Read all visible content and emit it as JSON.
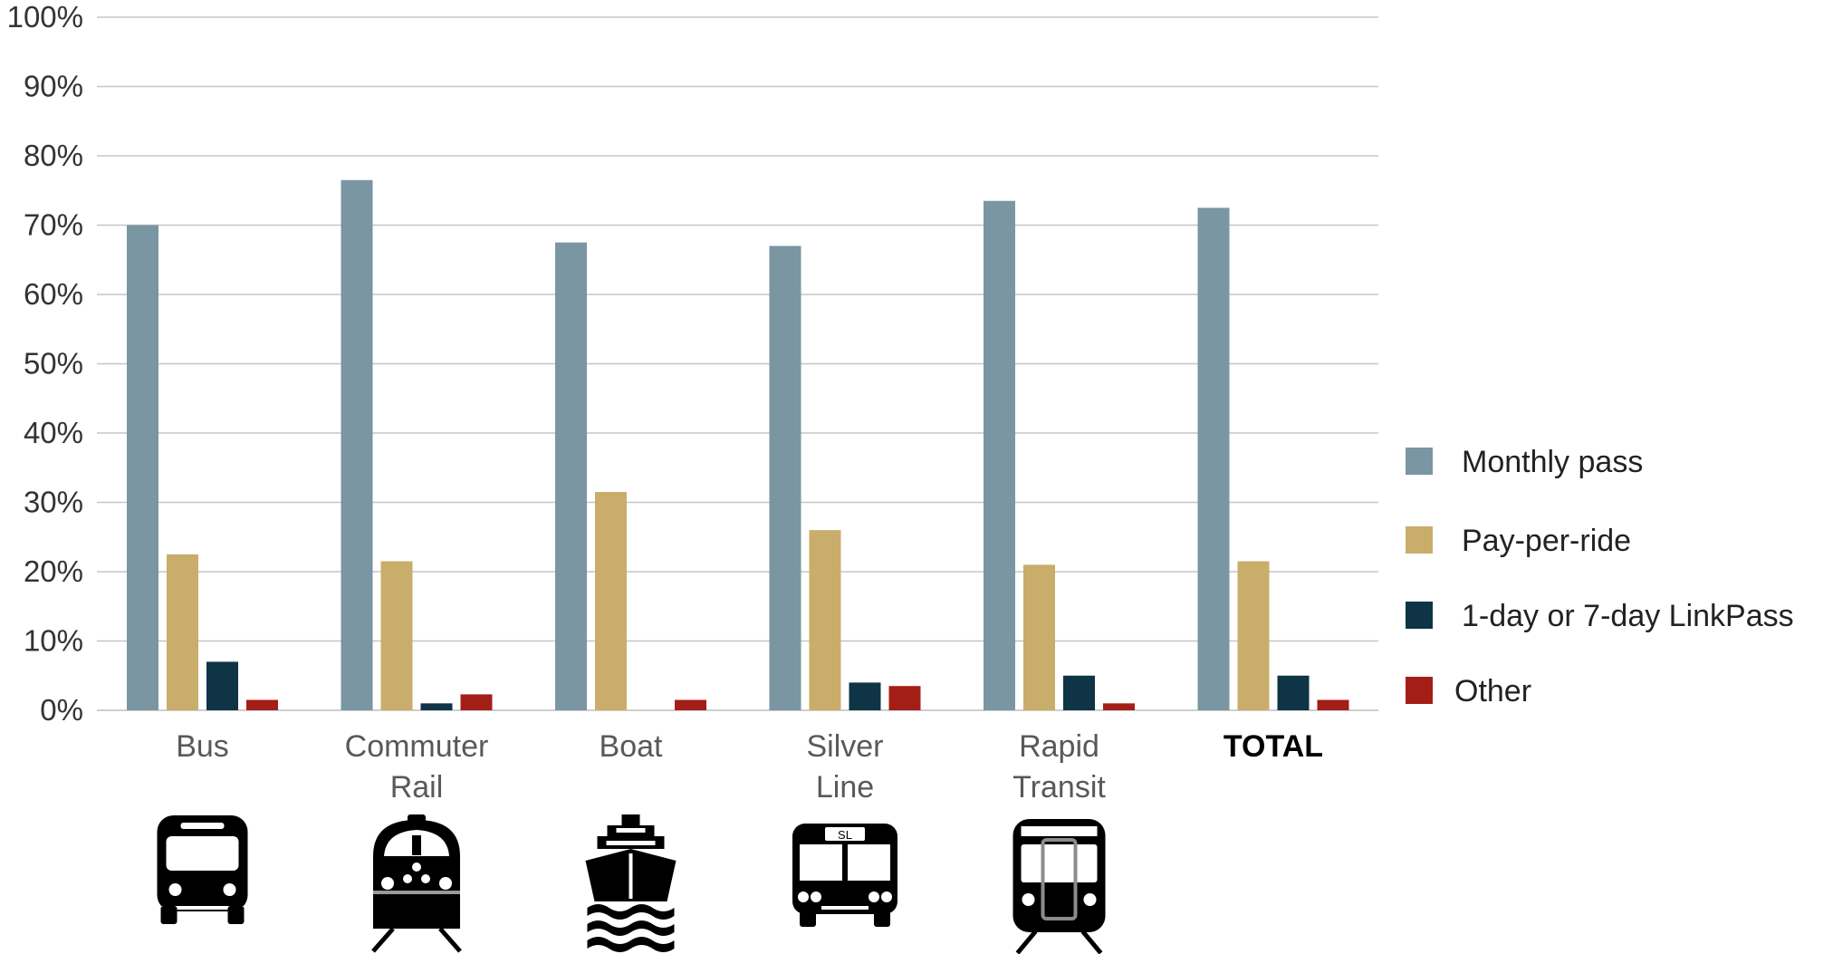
{
  "chart_data": {
    "type": "bar",
    "title": "",
    "xlabel": "",
    "ylabel": "",
    "ylim": [
      0,
      100
    ],
    "yticks": [
      "0%",
      "10%",
      "20%",
      "30%",
      "40%",
      "50%",
      "60%",
      "70%",
      "80%",
      "90%",
      "100%"
    ],
    "grid": true,
    "legend_position": "right",
    "categories": [
      {
        "lines": [
          "Bus"
        ],
        "bold": false,
        "icon": "bus-icon"
      },
      {
        "lines": [
          "Commuter",
          "Rail"
        ],
        "bold": false,
        "icon": "commuter-rail-icon"
      },
      {
        "lines": [
          "Boat"
        ],
        "bold": false,
        "icon": "boat-icon"
      },
      {
        "lines": [
          "Silver",
          "Line"
        ],
        "bold": false,
        "icon": "silver-line-bus-icon"
      },
      {
        "lines": [
          "Rapid",
          "Transit"
        ],
        "bold": false,
        "icon": "rapid-transit-train-icon"
      },
      {
        "lines": [
          "TOTAL"
        ],
        "bold": true,
        "icon": ""
      }
    ],
    "series": [
      {
        "name": "Monthly pass",
        "color": "#7a96a3",
        "values": [
          70,
          76.5,
          67.5,
          67,
          73.5,
          72.5
        ]
      },
      {
        "name": "Pay-per-ride",
        "color": "#c9ad6a",
        "values": [
          22.5,
          21.5,
          31.5,
          26,
          21,
          21.5
        ]
      },
      {
        "name": "1-day or 7-day LinkPass",
        "color": "#0e3445",
        "values": [
          7,
          1,
          0,
          4,
          5,
          5
        ]
      },
      {
        "name": "Other",
        "color": "#a41e18",
        "values": [
          1.5,
          2.3,
          1.5,
          3.5,
          1,
          1.5
        ]
      }
    ],
    "silver_line_sign": "SL"
  }
}
